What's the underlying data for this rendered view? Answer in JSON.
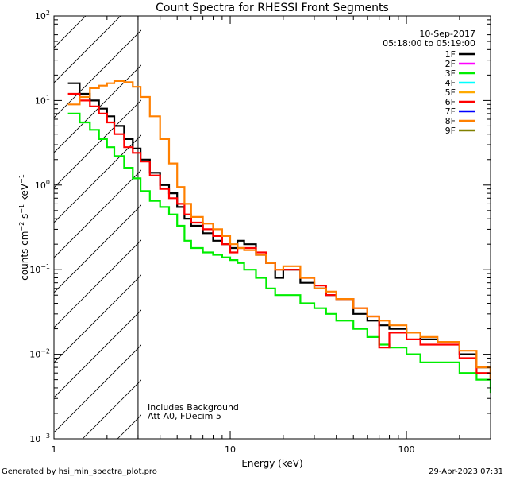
{
  "chart_data": {
    "type": "line",
    "title": "Count Spectra for RHESSI Front Segments",
    "xlabel": "Energy (keV)",
    "ylabel": "counts cm",
    "ylabel_sup1": "−2",
    "ylabel_mid": " s",
    "ylabel_sup2": "−1",
    "ylabel_end": " keV",
    "ylabel_sup3": "−1",
    "xscale": "log",
    "yscale": "log",
    "xlim": [
      1,
      300
    ],
    "ylim": [
      0.001,
      100
    ],
    "x_tick_labels": [
      {
        "value": 1,
        "label": "1"
      },
      {
        "value": 10,
        "label": "10"
      },
      {
        "value": 100,
        "label": "100"
      }
    ],
    "y_tick_labels": [
      {
        "value": 0.001,
        "base": "10",
        "exp": "−3"
      },
      {
        "value": 0.01,
        "base": "10",
        "exp": "−2"
      },
      {
        "value": 0.1,
        "base": "10",
        "exp": "−1"
      },
      {
        "value": 1,
        "base": "10",
        "exp": "0"
      },
      {
        "value": 10,
        "base": "10",
        "exp": "1"
      },
      {
        "value": 100,
        "base": "10",
        "exp": "2"
      }
    ],
    "date": "10-Sep-2017",
    "time_range": "05:18:00 to 05:19:00",
    "excluded_region_max_keV": 3,
    "annotations": [
      "Includes Background",
      "Att A0, FDecim 5"
    ],
    "legend": [
      {
        "label": "1F",
        "color": "#000000"
      },
      {
        "label": "2F",
        "color": "#ff00ff"
      },
      {
        "label": "3F",
        "color": "#00ee00"
      },
      {
        "label": "4F",
        "color": "#00ffff"
      },
      {
        "label": "5F",
        "color": "#ffaa00"
      },
      {
        "label": "6F",
        "color": "#ff0000"
      },
      {
        "label": "7F",
        "color": "#0000ff"
      },
      {
        "label": "8F",
        "color": "#ff8000"
      },
      {
        "label": "9F",
        "color": "#808000"
      }
    ],
    "series": [
      {
        "name": "1F",
        "color": "#000000",
        "x": [
          1.2,
          1.4,
          1.6,
          1.8,
          2.0,
          2.2,
          2.5,
          2.8,
          3.1,
          3.5,
          4.0,
          4.5,
          5.0,
          5.5,
          6.0,
          7.0,
          8.0,
          9.0,
          10.0,
          11.0,
          12.0,
          14.0,
          16.0,
          18.0,
          20.0,
          25.0,
          30.0,
          35.0,
          40.0,
          50.0,
          60.0,
          70.0,
          80.0,
          100.0,
          120.0,
          150.0,
          200.0,
          250.0,
          300.0
        ],
        "y": [
          16.0,
          12.0,
          10.0,
          8.0,
          6.5,
          5.0,
          3.5,
          2.7,
          2.0,
          1.4,
          1.0,
          0.8,
          0.55,
          0.4,
          0.33,
          0.27,
          0.22,
          0.2,
          0.18,
          0.22,
          0.2,
          0.15,
          0.12,
          0.08,
          0.1,
          0.07,
          0.06,
          0.05,
          0.045,
          0.03,
          0.025,
          0.022,
          0.02,
          0.018,
          0.015,
          0.014,
          0.01,
          0.007,
          0.005
        ]
      },
      {
        "name": "3F",
        "color": "#00ee00",
        "x": [
          1.2,
          1.4,
          1.6,
          1.8,
          2.0,
          2.2,
          2.5,
          2.8,
          3.1,
          3.5,
          4.0,
          4.5,
          5.0,
          5.5,
          6.0,
          7.0,
          8.0,
          9.0,
          10.0,
          11.0,
          12.0,
          14.0,
          16.0,
          18.0,
          20.0,
          25.0,
          30.0,
          35.0,
          40.0,
          50.0,
          60.0,
          70.0,
          80.0,
          100.0,
          120.0,
          150.0,
          200.0,
          250.0,
          300.0
        ],
        "y": [
          7.0,
          5.5,
          4.5,
          3.5,
          2.8,
          2.2,
          1.6,
          1.2,
          0.85,
          0.65,
          0.55,
          0.45,
          0.33,
          0.22,
          0.18,
          0.16,
          0.15,
          0.14,
          0.13,
          0.12,
          0.1,
          0.08,
          0.06,
          0.05,
          0.05,
          0.04,
          0.035,
          0.03,
          0.025,
          0.02,
          0.016,
          0.013,
          0.012,
          0.01,
          0.008,
          0.008,
          0.006,
          0.005,
          0.0035
        ]
      },
      {
        "name": "6F",
        "color": "#ff0000",
        "x": [
          1.2,
          1.4,
          1.6,
          1.8,
          2.0,
          2.2,
          2.5,
          2.8,
          3.1,
          3.5,
          4.0,
          4.5,
          5.0,
          5.5,
          6.0,
          7.0,
          8.0,
          9.0,
          10.0,
          11.0,
          12.0,
          14.0,
          16.0,
          18.0,
          20.0,
          25.0,
          30.0,
          35.0,
          40.0,
          50.0,
          60.0,
          70.0,
          80.0,
          100.0,
          120.0,
          150.0,
          200.0,
          250.0,
          300.0
        ],
        "y": [
          12.0,
          10.0,
          8.5,
          7.0,
          5.5,
          4.0,
          2.8,
          2.4,
          1.9,
          1.3,
          0.9,
          0.7,
          0.6,
          0.45,
          0.36,
          0.3,
          0.25,
          0.2,
          0.16,
          0.18,
          0.18,
          0.16,
          0.12,
          0.1,
          0.1,
          0.08,
          0.065,
          0.05,
          0.045,
          0.035,
          0.028,
          0.012,
          0.018,
          0.015,
          0.013,
          0.013,
          0.009,
          0.006,
          0.005
        ]
      },
      {
        "name": "8F",
        "color": "#ff8000",
        "x": [
          1.2,
          1.4,
          1.6,
          1.8,
          2.0,
          2.2,
          2.5,
          2.8,
          3.1,
          3.5,
          4.0,
          4.5,
          5.0,
          5.5,
          6.0,
          7.0,
          8.0,
          9.0,
          10.0,
          11.0,
          12.0,
          14.0,
          16.0,
          18.0,
          20.0,
          25.0,
          30.0,
          35.0,
          40.0,
          50.0,
          60.0,
          70.0,
          80.0,
          100.0,
          120.0,
          150.0,
          200.0,
          250.0,
          300.0
        ],
        "y": [
          9.0,
          11.0,
          14.0,
          15.0,
          16.0,
          17.0,
          16.5,
          14.5,
          11.0,
          6.5,
          3.5,
          1.8,
          0.95,
          0.6,
          0.42,
          0.35,
          0.3,
          0.25,
          0.2,
          0.18,
          0.17,
          0.15,
          0.12,
          0.1,
          0.11,
          0.08,
          0.06,
          0.055,
          0.045,
          0.035,
          0.028,
          0.025,
          0.022,
          0.018,
          0.016,
          0.014,
          0.011,
          0.007,
          0.005
        ]
      }
    ]
  },
  "footer": {
    "left": "Generated by hsi_min_spectra_plot.pro",
    "right": "29-Apr-2023 07:31"
  }
}
